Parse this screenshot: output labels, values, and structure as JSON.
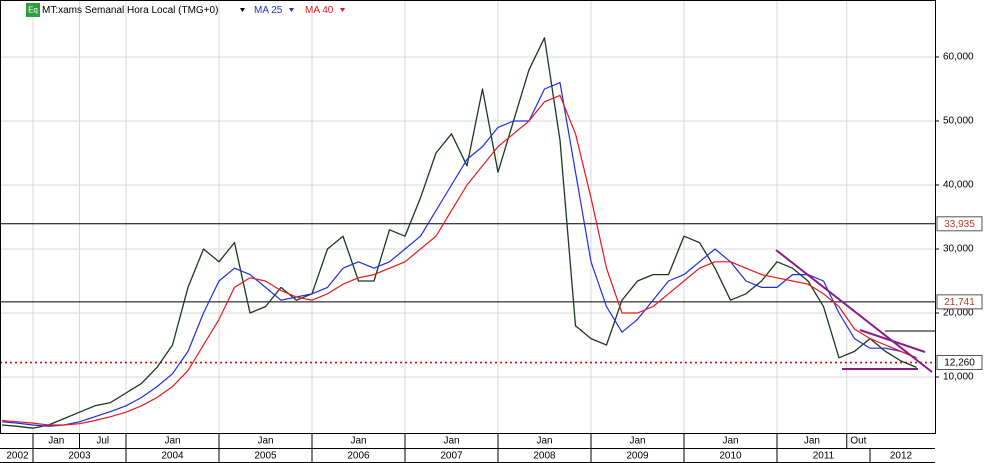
{
  "chart_data": {
    "type": "line",
    "instrument_badge": "Eq",
    "xlim": [
      "2002-09",
      "2012-09"
    ],
    "ylim": [
      1250,
      68900
    ],
    "yticks": [
      {
        "value": 10000,
        "label": "10,000"
      },
      {
        "value": 20000,
        "label": "20,000"
      },
      {
        "value": 30000,
        "label": "30,000"
      },
      {
        "value": 40000,
        "label": "40,000"
      },
      {
        "value": 50000,
        "label": "50,000"
      },
      {
        "value": 60000,
        "label": "60,000"
      }
    ],
    "xticks": [
      {
        "value": "2003-01",
        "label": "Jan"
      },
      {
        "value": "2003-07",
        "label": "Jul"
      },
      {
        "value": "2004-01",
        "label": "Jan"
      },
      {
        "value": "2005-01",
        "label": "Jan"
      },
      {
        "value": "2006-01",
        "label": "Jan"
      },
      {
        "value": "2007-01",
        "label": "Jan"
      },
      {
        "value": "2008-01",
        "label": "Jan"
      },
      {
        "value": "2009-01",
        "label": "Jan"
      },
      {
        "value": "2010-01",
        "label": "Jan"
      },
      {
        "value": "2011-01",
        "label": "Jan"
      },
      {
        "value": "2011-10",
        "label": "Out"
      }
    ],
    "year_ticks": [
      2002,
      2003,
      2004,
      2005,
      2006,
      2007,
      2008,
      2009,
      2010,
      2011,
      2012
    ],
    "grid": true,
    "x": [
      "2002-09",
      "2002-11",
      "2003-01",
      "2003-03",
      "2003-05",
      "2003-07",
      "2003-09",
      "2003-11",
      "2004-01",
      "2004-03",
      "2004-05",
      "2004-07",
      "2004-09",
      "2004-11",
      "2005-01",
      "2005-03",
      "2005-05",
      "2005-07",
      "2005-09",
      "2005-11",
      "2006-01",
      "2006-03",
      "2006-05",
      "2006-07",
      "2006-09",
      "2006-11",
      "2007-01",
      "2007-03",
      "2007-05",
      "2007-07",
      "2007-09",
      "2007-11",
      "2008-01",
      "2008-03",
      "2008-05",
      "2008-07",
      "2008-09",
      "2008-11",
      "2009-01",
      "2009-03",
      "2009-05",
      "2009-07",
      "2009-09",
      "2009-11",
      "2010-01",
      "2010-03",
      "2010-05",
      "2010-07",
      "2010-09",
      "2010-11",
      "2011-01",
      "2011-03",
      "2011-05",
      "2011-07",
      "2011-09",
      "2011-11",
      "2012-01",
      "2012-03",
      "2012-05",
      "2012-07"
    ],
    "series": [
      {
        "name": "MT:xams Semanal Hora Local (TMG+0)",
        "color": "#1b3a1b",
        "width": 1.3,
        "values": [
          2500,
          2300,
          2000,
          2500,
          3500,
          4500,
          5500,
          6000,
          7500,
          9000,
          11500,
          15000,
          24000,
          30000,
          28000,
          31000,
          20000,
          21000,
          24000,
          22000,
          23000,
          30000,
          32000,
          25000,
          25000,
          33000,
          32000,
          38000,
          45000,
          48000,
          43000,
          55000,
          42000,
          50000,
          58000,
          63000,
          47000,
          18000,
          16000,
          15000,
          22000,
          25000,
          26000,
          26000,
          32000,
          31000,
          27000,
          22000,
          23000,
          25000,
          28000,
          27000,
          25000,
          21000,
          13000,
          14000,
          16000,
          14000,
          12500,
          11500
        ]
      },
      {
        "name": "MA 25",
        "color": "#1f2fdd",
        "width": 1.2,
        "values": [
          3000,
          2800,
          2500,
          2300,
          2500,
          3000,
          3800,
          4600,
          5500,
          6800,
          8500,
          10500,
          14000,
          20000,
          25000,
          27000,
          26000,
          24000,
          22000,
          22500,
          23000,
          24000,
          27000,
          28000,
          27000,
          28000,
          30000,
          32000,
          36000,
          40000,
          44000,
          46000,
          49000,
          50000,
          50000,
          55000,
          56000,
          42000,
          28000,
          21000,
          17000,
          19000,
          22000,
          25000,
          26000,
          28000,
          30000,
          28000,
          25000,
          24000,
          24000,
          26000,
          26000,
          25000,
          20000,
          16000,
          14500,
          14500,
          14000,
          13000
        ]
      },
      {
        "name": "MA 40",
        "color": "#e8181e",
        "width": 1.2,
        "values": [
          3200,
          3000,
          2800,
          2500,
          2500,
          2700,
          3200,
          3800,
          4500,
          5500,
          6800,
          8500,
          11000,
          15000,
          19000,
          24000,
          25500,
          25000,
          23500,
          22500,
          22000,
          23000,
          24500,
          25500,
          26000,
          27000,
          28000,
          30000,
          32000,
          36000,
          40000,
          43000,
          46000,
          48000,
          50000,
          53000,
          54000,
          48000,
          38000,
          27000,
          20000,
          20000,
          21000,
          23000,
          25000,
          27000,
          28000,
          28000,
          27000,
          26000,
          25500,
          25000,
          24500,
          23000,
          21000,
          17500,
          16000,
          15000,
          14000,
          13000
        ]
      }
    ],
    "levels": [
      {
        "value": 33935,
        "label": "33,935",
        "color": "#000000",
        "text_color": "#c0392b",
        "dashed": false
      },
      {
        "value": 21741,
        "label": "21,741",
        "color": "#000000",
        "text_color": "#c0392b",
        "dashed": false
      },
      {
        "value": 12260,
        "label": "12,260",
        "color": "#d01010",
        "text_color": "#000000",
        "dashed": true
      }
    ]
  }
}
